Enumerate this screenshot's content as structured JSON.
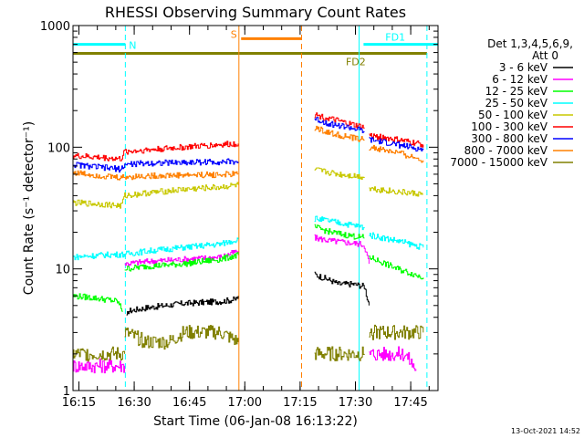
{
  "chart_data": {
    "type": "line",
    "title": "RHESSI Observing Summary Count Rates",
    "xlabel": "Start Time (06-Jan-08 16:13:22)",
    "ylabel": "Count Rate (s⁻¹ detector⁻¹)",
    "yscale": "log",
    "ylim": [
      1,
      1000
    ],
    "xlim_minutes": [
      0,
      99
    ],
    "x_ticks": [
      {
        "label": "16:15",
        "t": 1.6
      },
      {
        "label": "16:30",
        "t": 16.6
      },
      {
        "label": "16:45",
        "t": 31.6
      },
      {
        "label": "17:00",
        "t": 46.6
      },
      {
        "label": "17:15",
        "t": 61.6
      },
      {
        "label": "17:30",
        "t": 76.6
      },
      {
        "label": "17:45",
        "t": 91.6
      }
    ],
    "y_ticks": [
      {
        "label": "1",
        "v": 1
      },
      {
        "label": "10",
        "v": 10
      },
      {
        "label": "100",
        "v": 100
      },
      {
        "label": "1000",
        "v": 1000
      }
    ],
    "legend_header": [
      "Det 1,3,4,5,6,9,",
      "Att 0"
    ],
    "legend_placement": "right",
    "grid": false,
    "series": [
      {
        "name": "3 - 6 keV",
        "color": "#000000",
        "segments": [
          [
            [
              14.5,
              4.0
            ],
            [
              15,
              4.5
            ],
            [
              20,
              4.8
            ],
            [
              30,
              5.2
            ],
            [
              40,
              5.4
            ],
            [
              44,
              5.6
            ],
            [
              44.8,
              6.0
            ]
          ],
          [
            [
              65.5,
              9.0
            ],
            [
              70,
              8.0
            ],
            [
              72,
              7.5
            ],
            [
              76,
              7.5
            ],
            [
              79,
              7.2
            ],
            [
              80.3,
              5.0
            ]
          ]
        ]
      },
      {
        "name": "6 - 12 keV",
        "color": "#ff00ff",
        "segments": [
          [
            [
              0,
              1.6
            ],
            [
              10,
              1.6
            ],
            [
              14,
              1.6
            ]
          ],
          [
            [
              14,
              11.0
            ],
            [
              20,
              11.5
            ],
            [
              30,
              12.0
            ],
            [
              40,
              12.5
            ],
            [
              44.8,
              14.0
            ]
          ],
          [
            [
              65.5,
              18.0
            ],
            [
              70,
              17.0
            ],
            [
              74,
              16.5
            ],
            [
              78,
              16.0
            ],
            [
              79,
              15.5
            ],
            [
              80.3,
              11.0
            ]
          ],
          [
            [
              80.3,
              2.0
            ],
            [
              90,
              2.0
            ],
            [
              93,
              1.5
            ]
          ]
        ]
      },
      {
        "name": "12 - 25 keV",
        "color": "#00ff00",
        "segments": [
          [
            [
              0,
              6.0
            ],
            [
              5,
              5.8
            ],
            [
              9,
              5.6
            ],
            [
              12,
              5.4
            ],
            [
              13.5,
              4.5
            ]
          ],
          [
            [
              14,
              10.0
            ],
            [
              20,
              10.5
            ],
            [
              30,
              11.0
            ],
            [
              40,
              12.0
            ],
            [
              44.8,
              13.0
            ]
          ],
          [
            [
              65.5,
              22.0
            ],
            [
              70,
              20.0
            ],
            [
              74,
              19.0
            ],
            [
              79,
              18.0
            ]
          ],
          [
            [
              80.3,
              12.5
            ],
            [
              88,
              10.0
            ],
            [
              95,
              8.5
            ]
          ]
        ]
      },
      {
        "name": "25 - 50 keV",
        "color": "#00ffff",
        "segments": [
          [
            [
              0,
              12.5
            ],
            [
              8,
              13.0
            ],
            [
              14,
              13.2
            ],
            [
              20,
              14.0
            ],
            [
              30,
              15.0
            ],
            [
              40,
              16.0
            ],
            [
              44.8,
              17.5
            ]
          ],
          [
            [
              65.5,
              26.0
            ],
            [
              72,
              24.0
            ],
            [
              79,
              22.0
            ]
          ],
          [
            [
              80.3,
              19.0
            ],
            [
              88,
              17.0
            ],
            [
              95,
              15.0
            ]
          ]
        ]
      },
      {
        "name": "50 - 100 keV",
        "color": "#c8c800",
        "segments": [
          [
            [
              0,
              35.0
            ],
            [
              8,
              34.0
            ],
            [
              13,
              33.0
            ],
            [
              14,
              40.0
            ],
            [
              20,
              42.0
            ],
            [
              30,
              45.0
            ],
            [
              40,
              47.0
            ],
            [
              44.8,
              49.0
            ]
          ],
          [
            [
              65.5,
              65.0
            ],
            [
              72,
              60.0
            ],
            [
              79,
              57.0
            ]
          ],
          [
            [
              80.3,
              46.0
            ],
            [
              88,
              43.0
            ],
            [
              95,
              41.0
            ]
          ]
        ]
      },
      {
        "name": "100 - 300 keV",
        "color": "#ff0000",
        "segments": [
          [
            [
              0,
              85.0
            ],
            [
              8,
              82.0
            ],
            [
              13,
              80.0
            ],
            [
              14,
              92.0
            ],
            [
              20,
              95.0
            ],
            [
              30,
              100.0
            ],
            [
              40,
              105.0
            ],
            [
              44.8,
              107.0
            ]
          ],
          [
            [
              65.5,
              185.0
            ],
            [
              70,
              170.0
            ],
            [
              75,
              155.0
            ],
            [
              79,
              145.0
            ]
          ],
          [
            [
              80.3,
              125.0
            ],
            [
              88,
              115.0
            ],
            [
              95,
              105.0
            ]
          ]
        ]
      },
      {
        "name": "300 - 800 keV",
        "color": "#0000ff",
        "segments": [
          [
            [
              0,
              72.0
            ],
            [
              8,
              68.0
            ],
            [
              13,
              66.0
            ],
            [
              14,
              72.0
            ],
            [
              20,
              74.0
            ],
            [
              30,
              75.0
            ],
            [
              40,
              76.0
            ],
            [
              44.8,
              76.0
            ]
          ],
          [
            [
              65.5,
              170.0
            ],
            [
              70,
              155.0
            ],
            [
              75,
              145.0
            ],
            [
              79,
              135.0
            ]
          ],
          [
            [
              80.3,
              115.0
            ],
            [
              88,
              105.0
            ],
            [
              95,
              95.0
            ]
          ]
        ]
      },
      {
        "name": "800 - 7000 keV",
        "color": "#ff8000",
        "segments": [
          [
            [
              0,
              62.0
            ],
            [
              8,
              58.0
            ],
            [
              13,
              56.0
            ],
            [
              14,
              57.0
            ],
            [
              20,
              58.0
            ],
            [
              30,
              59.0
            ],
            [
              40,
              59.5
            ],
            [
              44.8,
              60.0
            ]
          ],
          [
            [
              65.5,
              145.0
            ],
            [
              70,
              130.0
            ],
            [
              75,
              120.0
            ],
            [
              79,
              115.0
            ]
          ],
          [
            [
              80.3,
              100.0
            ],
            [
              88,
              90.0
            ],
            [
              95,
              78.0
            ]
          ]
        ]
      },
      {
        "name": "7000 - 15000 keV",
        "color": "#808000",
        "segments": [
          [
            [
              0,
              2.0
            ],
            [
              10,
              2.0
            ],
            [
              14,
              2.0
            ]
          ],
          [
            [
              14,
              3.0
            ],
            [
              20,
              2.5
            ],
            [
              26,
              2.5
            ],
            [
              30,
              3.0
            ],
            [
              40,
              3.0
            ],
            [
              44.8,
              2.5
            ]
          ],
          [
            [
              65.5,
              2.0
            ],
            [
              72,
              2.0
            ],
            [
              79,
              2.0
            ]
          ],
          [
            [
              80.3,
              3.0
            ],
            [
              88,
              3.0
            ],
            [
              95,
              3.0
            ]
          ]
        ]
      }
    ],
    "flags": [
      {
        "label": "N",
        "color": "#00ffff",
        "start": 0,
        "end": 14.2,
        "level": 700
      },
      {
        "label": "S",
        "color": "#ff8000",
        "start": 45.6,
        "end": 62.0,
        "level": 780
      },
      {
        "label": "FD1",
        "color": "#00ffff",
        "start": 78.8,
        "end": 99.0,
        "level": 700
      },
      {
        "label": "FD2",
        "color": "#808000",
        "start": 0,
        "end": 96.0,
        "level": 590
      }
    ],
    "vertical_markers": [
      {
        "t": 0.0,
        "color": "#00ffff",
        "style": "solid"
      },
      {
        "t": 14.2,
        "color": "#00ffff",
        "style": "dashed"
      },
      {
        "t": 45.0,
        "color": "#ff8000",
        "style": "solid"
      },
      {
        "t": 62.0,
        "color": "#ff8000",
        "style": "dashed"
      },
      {
        "t": 77.6,
        "color": "#00ffff",
        "style": "solid"
      },
      {
        "t": 96.0,
        "color": "#00ffff",
        "style": "dashed"
      }
    ],
    "timestamp": "13-Oct-2021 14:52"
  }
}
